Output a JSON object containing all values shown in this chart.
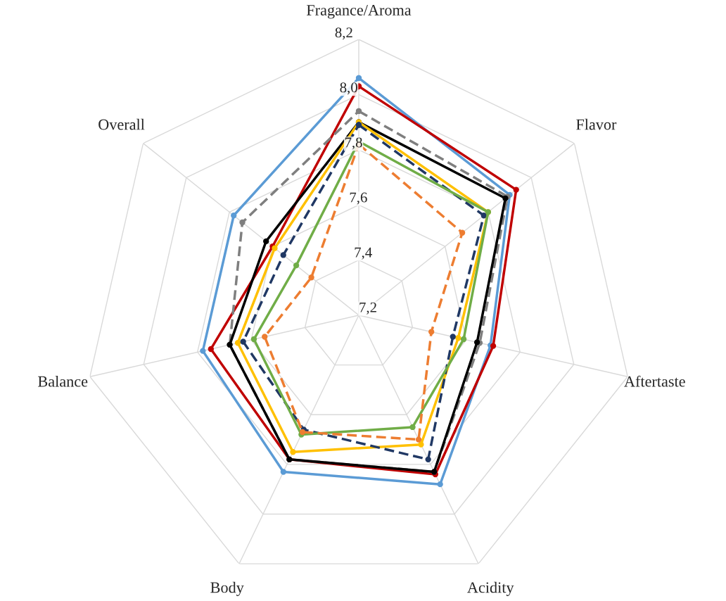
{
  "chart_data": {
    "type": "radar",
    "categories": [
      "Fragance/Aroma",
      "Flavor",
      "Aftertaste",
      "Acidity",
      "Body",
      "Balance",
      "Overall"
    ],
    "ylim": [
      7.2,
      8.2
    ],
    "yticks": [
      {
        "value": 7.2,
        "label": "7,2"
      },
      {
        "value": 7.4,
        "label": "7,4"
      },
      {
        "value": 7.6,
        "label": "7,6"
      },
      {
        "value": 7.8,
        "label": "7,8"
      },
      {
        "value": 8.0,
        "label": "8,0"
      },
      {
        "value": 8.2,
        "label": "8,2"
      }
    ],
    "grid": true,
    "legend": false,
    "marker": "circle",
    "series": [
      {
        "color": "#5b9bd5",
        "line_style": "solid",
        "values": [
          8.06,
          7.9,
          7.69,
          7.88,
          7.83,
          7.78,
          7.78
        ]
      },
      {
        "color": "#c00000",
        "line_style": "solid",
        "values": [
          8.03,
          7.93,
          7.7,
          7.84,
          7.78,
          7.75,
          7.6
        ]
      },
      {
        "color": "#7f7f7f",
        "line_style": "dashed",
        "values": [
          7.94,
          7.89,
          7.65,
          7.83,
          7.78,
          7.68,
          7.74
        ]
      },
      {
        "color": "#000000",
        "line_style": "solid",
        "values": [
          7.9,
          7.88,
          7.64,
          7.83,
          7.78,
          7.68,
          7.63
        ]
      },
      {
        "color": "#ffc000",
        "line_style": "solid",
        "values": [
          7.9,
          7.8,
          7.57,
          7.72,
          7.75,
          7.65,
          7.59
        ]
      },
      {
        "color": "#203864",
        "line_style": "dashed",
        "values": [
          7.89,
          7.78,
          7.55,
          7.78,
          7.66,
          7.63,
          7.55
        ]
      },
      {
        "color": "#70ad47",
        "line_style": "solid",
        "values": [
          7.83,
          7.8,
          7.59,
          7.65,
          7.68,
          7.59,
          7.49
        ]
      },
      {
        "color": "#ed7d31",
        "line_style": "dashed",
        "values": [
          7.82,
          7.68,
          7.47,
          7.7,
          7.67,
          7.55,
          7.42
        ]
      }
    ]
  }
}
